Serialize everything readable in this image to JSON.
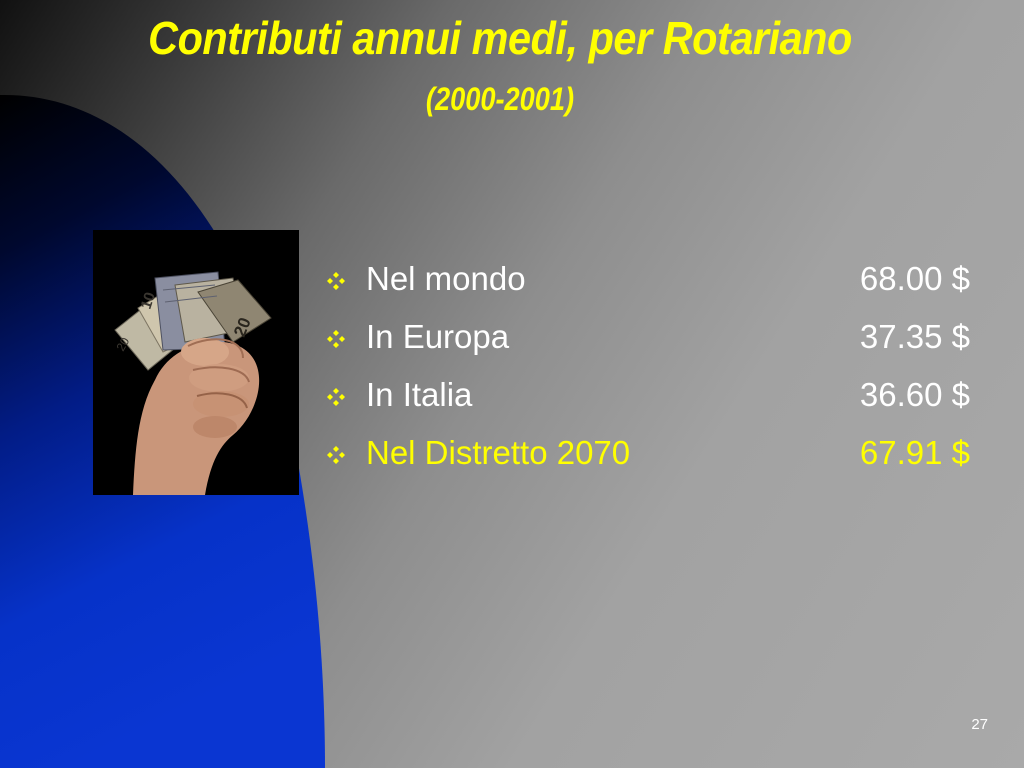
{
  "slide": {
    "title": "Contributi annui medi, per Rotariano",
    "subtitle": "(2000-2001)",
    "page_number": "27",
    "image": {
      "name": "hand-holding-banknotes",
      "banknote_denominations_visible": [
        "10",
        "20"
      ]
    },
    "items": [
      {
        "label": "Nel mondo",
        "value": "68.00 $",
        "highlight": false
      },
      {
        "label": "In Europa",
        "value": "37.35 $",
        "highlight": false
      },
      {
        "label": "In Italia",
        "value": "36.60 $",
        "highlight": false
      },
      {
        "label": "Nel Distretto 2070",
        "value": "67.91 $",
        "highlight": true
      }
    ],
    "bullet_icon": "four-diamond-bullet-icon",
    "colors": {
      "title": "#ffff00",
      "highlight": "#ffff00",
      "text": "#ffffff",
      "accent_blue": "#0a2fc8"
    }
  }
}
